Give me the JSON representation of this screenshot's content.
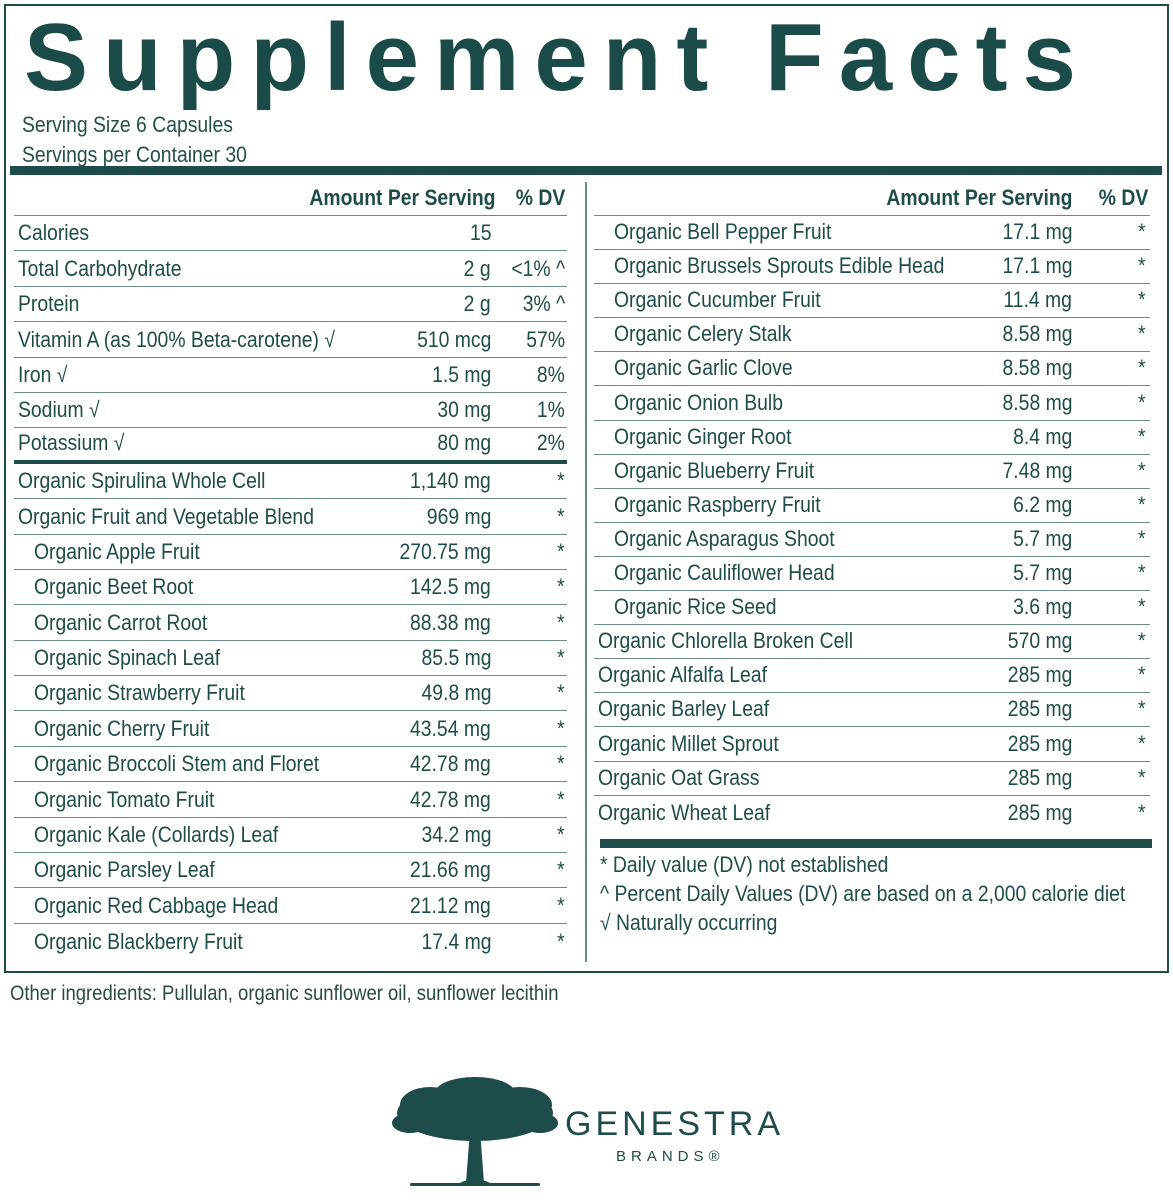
{
  "title": "Supplement Facts",
  "serving": {
    "size": "Serving Size 6 Capsules",
    "per_container": "Servings per Container 30"
  },
  "headers": {
    "amount": "Amount Per Serving",
    "dv": "% DV"
  },
  "left_rows": [
    {
      "name": "Calories",
      "amount": "15",
      "dv": ""
    },
    {
      "name": "Total Carbohydrate",
      "amount": "2 g",
      "dv": "<1% ^"
    },
    {
      "name": "Protein",
      "amount": "2 g",
      "dv": "3% ^"
    },
    {
      "name": "Vitamin A (as 100% Beta-carotene) √",
      "amount": "510 mcg",
      "dv": "57%"
    },
    {
      "name": "Iron √",
      "amount": "1.5 mg",
      "dv": "8%"
    },
    {
      "name": "Sodium √",
      "amount": "30 mg",
      "dv": "1%"
    },
    {
      "name": "Potassium √",
      "amount": "80 mg",
      "dv": "2%"
    },
    {
      "name": "Organic Spirulina Whole Cell",
      "amount": "1,140 mg",
      "dv": "*"
    },
    {
      "name": "Organic Fruit and Vegetable Blend",
      "amount": "969 mg",
      "dv": "*"
    },
    {
      "name": "Organic Apple Fruit",
      "amount": "270.75 mg",
      "dv": "*"
    },
    {
      "name": "Organic Beet Root",
      "amount": "142.5 mg",
      "dv": "*"
    },
    {
      "name": "Organic Carrot Root",
      "amount": "88.38 mg",
      "dv": "*"
    },
    {
      "name": "Organic Spinach Leaf",
      "amount": "85.5 mg",
      "dv": "*"
    },
    {
      "name": "Organic Strawberry Fruit",
      "amount": "49.8 mg",
      "dv": "*"
    },
    {
      "name": "Organic Cherry Fruit",
      "amount": "43.54 mg",
      "dv": "*"
    },
    {
      "name": "Organic Broccoli Stem and Floret",
      "amount": "42.78 mg",
      "dv": "*"
    },
    {
      "name": "Organic Tomato Fruit",
      "amount": "42.78 mg",
      "dv": "*"
    },
    {
      "name": "Organic Kale (Collards) Leaf",
      "amount": "34.2 mg",
      "dv": "*"
    },
    {
      "name": "Organic Parsley Leaf",
      "amount": "21.66 mg",
      "dv": "*"
    },
    {
      "name": "Organic Red Cabbage Head",
      "amount": "21.12 mg",
      "dv": "*"
    },
    {
      "name": "Organic Blackberry Fruit",
      "amount": "17.4 mg",
      "dv": "*"
    }
  ],
  "right_rows": [
    {
      "name": "Organic Bell Pepper Fruit",
      "amount": "17.1 mg",
      "dv": "*"
    },
    {
      "name": "Organic Brussels Sprouts Edible Head",
      "amount": "17.1 mg",
      "dv": "*"
    },
    {
      "name": "Organic Cucumber Fruit",
      "amount": "11.4 mg",
      "dv": "*"
    },
    {
      "name": "Organic Celery Stalk",
      "amount": "8.58 mg",
      "dv": "*"
    },
    {
      "name": "Organic Garlic Clove",
      "amount": "8.58 mg",
      "dv": "*"
    },
    {
      "name": "Organic Onion Bulb",
      "amount": "8.58 mg",
      "dv": "*"
    },
    {
      "name": "Organic Ginger Root",
      "amount": "8.4 mg",
      "dv": "*"
    },
    {
      "name": "Organic Blueberry Fruit",
      "amount": "7.48 mg",
      "dv": "*"
    },
    {
      "name": "Organic Raspberry Fruit",
      "amount": "6.2 mg",
      "dv": "*"
    },
    {
      "name": "Organic Asparagus Shoot",
      "amount": "5.7 mg",
      "dv": "*"
    },
    {
      "name": "Organic Cauliflower Head",
      "amount": "5.7 mg",
      "dv": "*"
    },
    {
      "name": "Organic Rice Seed",
      "amount": "3.6 mg",
      "dv": "*"
    },
    {
      "name": "Organic Chlorella Broken Cell",
      "amount": "570 mg",
      "dv": "*"
    },
    {
      "name": "Organic Alfalfa Leaf",
      "amount": "285 mg",
      "dv": "*"
    },
    {
      "name": "Organic Barley Leaf",
      "amount": "285 mg",
      "dv": "*"
    },
    {
      "name": "Organic Millet Sprout",
      "amount": "285 mg",
      "dv": "*"
    },
    {
      "name": "Organic Oat Grass",
      "amount": "285 mg",
      "dv": "*"
    },
    {
      "name": "Organic Wheat Leaf",
      "amount": "285 mg",
      "dv": "*"
    }
  ],
  "footnotes": [
    "* Daily value (DV) not established",
    "^ Percent Daily Values (DV) are based on a 2,000 calorie diet",
    "√ Naturally occurring"
  ],
  "other_ingredients": "Other ingredients: Pullulan, organic sunflower oil, sunflower lecithin",
  "brand": {
    "name": "GENESTRA",
    "sub": "BRANDS®",
    "logo_icon": "tree-icon"
  },
  "colors": {
    "primary": "#1e4c4a",
    "rule": "#6c8c8a",
    "background": "#ffffff"
  }
}
